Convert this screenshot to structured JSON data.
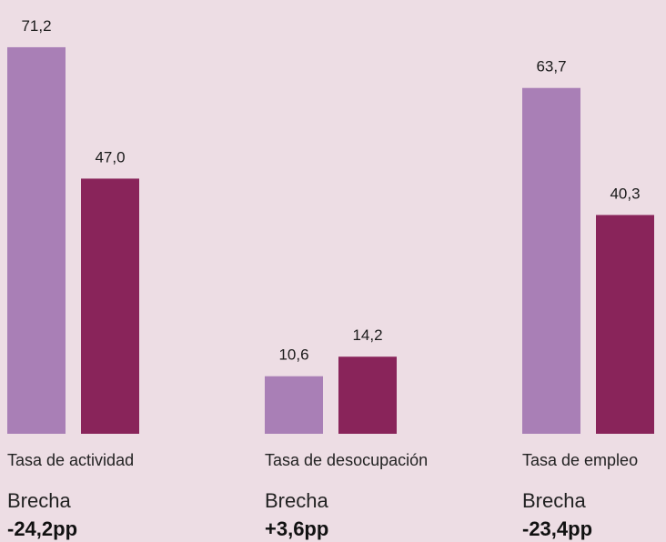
{
  "chart_data": {
    "type": "bar",
    "categories": [
      "Tasa de actividad",
      "Tasa de desocupación",
      "Tasa de empleo"
    ],
    "series": [
      {
        "values": [
          71.2,
          10.6,
          63.7
        ],
        "color": "#a97fb6"
      },
      {
        "values": [
          47.0,
          14.2,
          40.3
        ],
        "color": "#89245a"
      }
    ],
    "value_labels": [
      [
        "71,2",
        "10,6",
        "63,7"
      ],
      [
        "47,0",
        "14,2",
        "40,3"
      ]
    ],
    "gap_title": "Brecha",
    "gaps": [
      "-24,2pp",
      "+3,6pp",
      "-23,4pp"
    ],
    "ylim": [
      0,
      80
    ],
    "grid": false,
    "title": "",
    "xlabel": "",
    "ylabel": ""
  },
  "colors": {
    "background": "#eddde4",
    "series_1": "#a97fb6",
    "series_2": "#89245a"
  }
}
